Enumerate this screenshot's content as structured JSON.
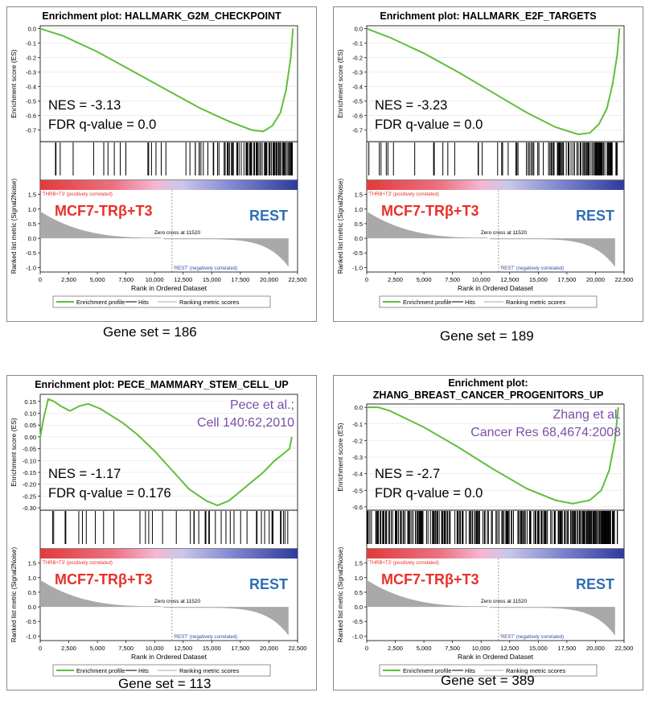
{
  "colors": {
    "curve": "#5fbf3c",
    "hits": "#000000",
    "metric": "#a9a9a9",
    "group_label": "#e8302a",
    "rest_label": "#2e6fb5",
    "citation": "#7b4fa6",
    "pos_label": "#e8302a",
    "neg_label": "#3a4aa6"
  },
  "chart_data": [
    {
      "type": "line",
      "title": "Enrichment plot: HALLMARK_G2M_CHECKPOINT",
      "ylabel": "Enrichment score (ES)",
      "ylabel2": "Ranked list metric (Signal2Noise)",
      "xlabel": "Rank in Ordered Dataset",
      "es_ticks": [
        "0.0",
        "-0.1",
        "-0.2",
        "-0.3",
        "-0.4",
        "-0.5",
        "-0.6",
        "-0.7"
      ],
      "es_ylim": [
        -0.78,
        0.02
      ],
      "metric_ticks": [
        "1.5",
        "1.0",
        "0.5",
        "0.0",
        "-0.5",
        "-1.0"
      ],
      "x_ticks": [
        "0",
        "2,500",
        "5,000",
        "7,500",
        "10,000",
        "12,500",
        "15,000",
        "17,500",
        "20,000",
        "22,500"
      ],
      "xlim": [
        0,
        22500
      ],
      "es_curve": [
        [
          0,
          0
        ],
        [
          2000,
          -0.05
        ],
        [
          5000,
          -0.16
        ],
        [
          8000,
          -0.29
        ],
        [
          11000,
          -0.42
        ],
        [
          14000,
          -0.55
        ],
        [
          16500,
          -0.64
        ],
        [
          18500,
          -0.7
        ],
        [
          19500,
          -0.71
        ],
        [
          20300,
          -0.67
        ],
        [
          21000,
          -0.58
        ],
        [
          21500,
          -0.42
        ],
        [
          21900,
          -0.2
        ],
        [
          22100,
          0
        ]
      ],
      "hit_density": [
        [
          0,
          1500,
          2
        ],
        [
          1500,
          5000,
          3
        ],
        [
          5000,
          9000,
          5
        ],
        [
          9000,
          13000,
          7
        ],
        [
          13000,
          16000,
          12
        ],
        [
          16000,
          18000,
          22
        ],
        [
          18000,
          22100,
          60
        ]
      ],
      "nes_text": "NES = -3.13",
      "fdr_text": "FDR q-value = 0.0",
      "group_label": "MCF7-TRβ+T3",
      "rest_label": "REST",
      "pos_label": "'THRB+T3' (positively correlated)",
      "neg_label": "'REST' (negatively correlated)",
      "zero_cross": "Zero cross at 11520",
      "citation": [],
      "legend": [
        "Enrichment profile",
        "Hits",
        "Ranking metric scores"
      ],
      "gene_set_text": "Gene set = 186"
    },
    {
      "type": "line",
      "title": "Enrichment plot: HALLMARK_E2F_TARGETS",
      "ylabel": "Enrichment score (ES)",
      "ylabel2": "Ranked list metric (Signal2Noise)",
      "xlabel": "Rank in Ordered Dataset",
      "es_ticks": [
        "0.0",
        "-0.1",
        "-0.2",
        "-0.3",
        "-0.4",
        "-0.5",
        "-0.6",
        "-0.7"
      ],
      "es_ylim": [
        -0.78,
        0.02
      ],
      "metric_ticks": [
        "1.5",
        "1.0",
        "0.5",
        "0.0",
        "-0.5",
        "-1.0"
      ],
      "x_ticks": [
        "0",
        "2,500",
        "5,000",
        "7,500",
        "10,000",
        "12,500",
        "15,000",
        "17,500",
        "20,000",
        "22,500"
      ],
      "xlim": [
        0,
        22500
      ],
      "es_curve": [
        [
          0,
          0
        ],
        [
          2000,
          -0.06
        ],
        [
          5000,
          -0.17
        ],
        [
          8000,
          -0.3
        ],
        [
          11000,
          -0.44
        ],
        [
          14000,
          -0.58
        ],
        [
          16500,
          -0.68
        ],
        [
          18500,
          -0.73
        ],
        [
          19500,
          -0.72
        ],
        [
          20300,
          -0.66
        ],
        [
          21000,
          -0.55
        ],
        [
          21500,
          -0.38
        ],
        [
          21900,
          -0.18
        ],
        [
          22100,
          0
        ]
      ],
      "hit_density": [
        [
          0,
          1500,
          3
        ],
        [
          1500,
          5000,
          4
        ],
        [
          5000,
          9000,
          5
        ],
        [
          9000,
          13000,
          7
        ],
        [
          13000,
          16000,
          14
        ],
        [
          16000,
          18000,
          22
        ],
        [
          18000,
          22100,
          55
        ]
      ],
      "nes_text": "NES = -3.23",
      "fdr_text": "FDR q-value = 0.0",
      "group_label": "MCF7-TRβ+T3",
      "rest_label": "REST",
      "pos_label": "'THRB+T3' (positively correlated)",
      "neg_label": "'REST' (negatively correlated)",
      "zero_cross": "Zero cross at 11520",
      "citation": [],
      "legend": [
        "Enrichment profile",
        "Hits",
        "Ranking metric scores"
      ],
      "gene_set_text": "Gene set = 189"
    },
    {
      "type": "line",
      "title": "Enrichment plot: PECE_MAMMARY_STEM_CELL_UP",
      "ylabel": "Enrichment score (ES)",
      "ylabel2": "Ranked list metric (Signal2Noise)",
      "xlabel": "Rank in Ordered Dataset",
      "es_ticks": [
        "0.15",
        "0.10",
        "0.05",
        "0.00",
        "-0.05",
        "-0.10",
        "-0.15",
        "-0.20",
        "-0.25",
        "-0.30"
      ],
      "es_ylim": [
        -0.31,
        0.18
      ],
      "metric_ticks": [
        "1.5",
        "1.0",
        "0.5",
        "0.0",
        "-0.5",
        "-1.0"
      ],
      "x_ticks": [
        "0",
        "2,500",
        "5,000",
        "7,500",
        "10,000",
        "12,500",
        "15,000",
        "17,500",
        "20,000",
        "22,500"
      ],
      "xlim": [
        0,
        22500
      ],
      "es_curve": [
        [
          0,
          0
        ],
        [
          300,
          0.08
        ],
        [
          700,
          0.16
        ],
        [
          1200,
          0.15
        ],
        [
          1800,
          0.13
        ],
        [
          2600,
          0.11
        ],
        [
          3400,
          0.13
        ],
        [
          4200,
          0.14
        ],
        [
          5200,
          0.12
        ],
        [
          6200,
          0.09
        ],
        [
          7200,
          0.06
        ],
        [
          8500,
          0.01
        ],
        [
          10000,
          -0.06
        ],
        [
          11500,
          -0.14
        ],
        [
          13000,
          -0.22
        ],
        [
          14500,
          -0.27
        ],
        [
          15500,
          -0.29
        ],
        [
          16500,
          -0.27
        ],
        [
          17500,
          -0.23
        ],
        [
          18500,
          -0.19
        ],
        [
          19500,
          -0.15
        ],
        [
          20500,
          -0.1
        ],
        [
          21300,
          -0.07
        ],
        [
          21800,
          -0.05
        ],
        [
          22000,
          0
        ]
      ],
      "hit_density": [
        [
          0,
          3000,
          4
        ],
        [
          3000,
          9000,
          7
        ],
        [
          9000,
          14000,
          9
        ],
        [
          14000,
          18000,
          11
        ],
        [
          18000,
          22000,
          14
        ]
      ],
      "nes_text": "NES = -1.17",
      "fdr_text": "FDR q-value = 0.176",
      "group_label": "MCF7-TRβ+T3",
      "rest_label": "REST",
      "pos_label": "'THRB+T3' (positively correlated)",
      "neg_label": "'REST' (negatively correlated)",
      "zero_cross": "Zero cross at 11520",
      "citation": [
        "Pece et al.;",
        "Cell 140:62,2010"
      ],
      "legend": [
        "Enrichment profile",
        "Hits",
        "Ranking metric scores"
      ],
      "gene_set_text": "Gene set = 113"
    },
    {
      "type": "line",
      "title": "Enrichment plot:",
      "title2": "ZHANG_BREAST_CANCER_PROGENITORS_UP",
      "ylabel": "Enrichment score (ES)",
      "ylabel2": "Ranked list metric (Signal2Noise)",
      "xlabel": "Rank in Ordered Dataset",
      "es_ticks": [
        "0.0",
        "-0.1",
        "-0.2",
        "-0.3",
        "-0.4",
        "-0.5",
        "-0.6"
      ],
      "es_ylim": [
        -0.62,
        0.02
      ],
      "metric_ticks": [
        "1.5",
        "1.0",
        "0.5",
        "0.0",
        "-0.5",
        "-1.0"
      ],
      "x_ticks": [
        "0",
        "2,500",
        "5,000",
        "7,500",
        "10,000",
        "12,500",
        "15,000",
        "17,500",
        "20,000",
        "22,500"
      ],
      "xlim": [
        0,
        22500
      ],
      "es_curve": [
        [
          0,
          0
        ],
        [
          1000,
          0
        ],
        [
          2000,
          -0.02
        ],
        [
          5000,
          -0.12
        ],
        [
          8000,
          -0.24
        ],
        [
          11000,
          -0.37
        ],
        [
          14000,
          -0.49
        ],
        [
          16500,
          -0.56
        ],
        [
          18000,
          -0.58
        ],
        [
          19500,
          -0.56
        ],
        [
          20500,
          -0.5
        ],
        [
          21200,
          -0.38
        ],
        [
          21700,
          -0.2
        ],
        [
          22000,
          0
        ]
      ],
      "hit_density": [
        [
          0,
          2500,
          30
        ],
        [
          2500,
          6000,
          45
        ],
        [
          6000,
          10000,
          40
        ],
        [
          10000,
          14000,
          40
        ],
        [
          14000,
          18000,
          50
        ],
        [
          18000,
          22000,
          80
        ]
      ],
      "nes_text": "NES = -2.7",
      "fdr_text": "FDR q-value = 0.0",
      "group_label": "MCF7-TRβ+T3",
      "rest_label": "REST",
      "pos_label": "'THRB+T3' (positively correlated)",
      "neg_label": "'REST' (negatively correlated)",
      "zero_cross": "Zero cross at 11520",
      "citation": [
        "Zhang et al.",
        "Cancer Res 68,4674:2008"
      ],
      "legend": [
        "Enrichment profile",
        "Hits",
        "Ranking metric scores"
      ],
      "gene_set_text": "Gene set = 389"
    }
  ]
}
